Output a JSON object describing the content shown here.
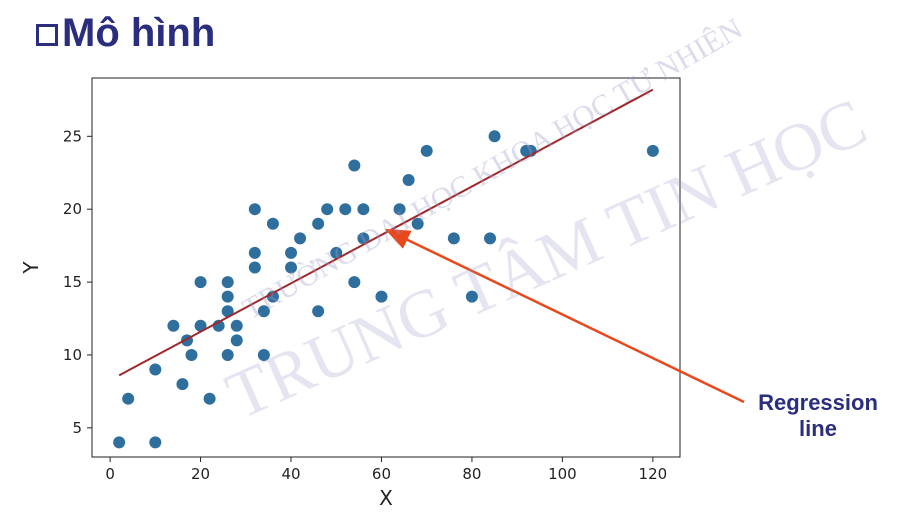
{
  "slide": {
    "title": "Mô hình"
  },
  "watermark": {
    "line1": "TRƯỜNG ĐẠI HỌC KHOA HỌC TỰ NHIÊN",
    "line2": "TRUNG TÂM TIN HỌC"
  },
  "annotation": {
    "label": "Regression line",
    "color": "#e8481c"
  },
  "chart_data": {
    "type": "scatter",
    "xlabel": "X",
    "ylabel": "Y",
    "xlim": [
      -4,
      126
    ],
    "ylim": [
      3,
      29
    ],
    "xticks": [
      "0",
      "20",
      "40",
      "60",
      "80",
      "100",
      "120"
    ],
    "yticks": [
      "5",
      "10",
      "15",
      "20",
      "25"
    ],
    "point_color": "#2e6f9e",
    "line_color": "#a0282a",
    "points": [
      [
        2,
        4
      ],
      [
        4,
        7
      ],
      [
        10,
        4
      ],
      [
        10,
        9
      ],
      [
        14,
        12
      ],
      [
        16,
        8
      ],
      [
        17,
        11
      ],
      [
        18,
        10
      ],
      [
        20,
        12
      ],
      [
        20,
        15
      ],
      [
        22,
        7
      ],
      [
        24,
        12
      ],
      [
        26,
        13
      ],
      [
        26,
        14
      ],
      [
        26,
        15
      ],
      [
        26,
        10
      ],
      [
        28,
        11
      ],
      [
        28,
        12
      ],
      [
        32,
        20
      ],
      [
        32,
        16
      ],
      [
        32,
        17
      ],
      [
        34,
        10
      ],
      [
        34,
        13
      ],
      [
        36,
        14
      ],
      [
        36,
        19
      ],
      [
        40,
        16
      ],
      [
        40,
        17
      ],
      [
        42,
        18
      ],
      [
        46,
        19
      ],
      [
        46,
        13
      ],
      [
        48,
        20
      ],
      [
        50,
        17
      ],
      [
        52,
        20
      ],
      [
        54,
        23
      ],
      [
        54,
        15
      ],
      [
        56,
        20
      ],
      [
        56,
        18
      ],
      [
        60,
        14
      ],
      [
        64,
        20
      ],
      [
        66,
        22
      ],
      [
        68,
        19
      ],
      [
        70,
        24
      ],
      [
        76,
        18
      ],
      [
        80,
        14
      ],
      [
        84,
        18
      ],
      [
        85,
        25
      ],
      [
        92,
        24
      ],
      [
        93,
        24
      ],
      [
        120,
        24
      ]
    ],
    "regression_line": {
      "x": [
        2,
        120
      ],
      "y": [
        8.6,
        28.2
      ]
    }
  }
}
